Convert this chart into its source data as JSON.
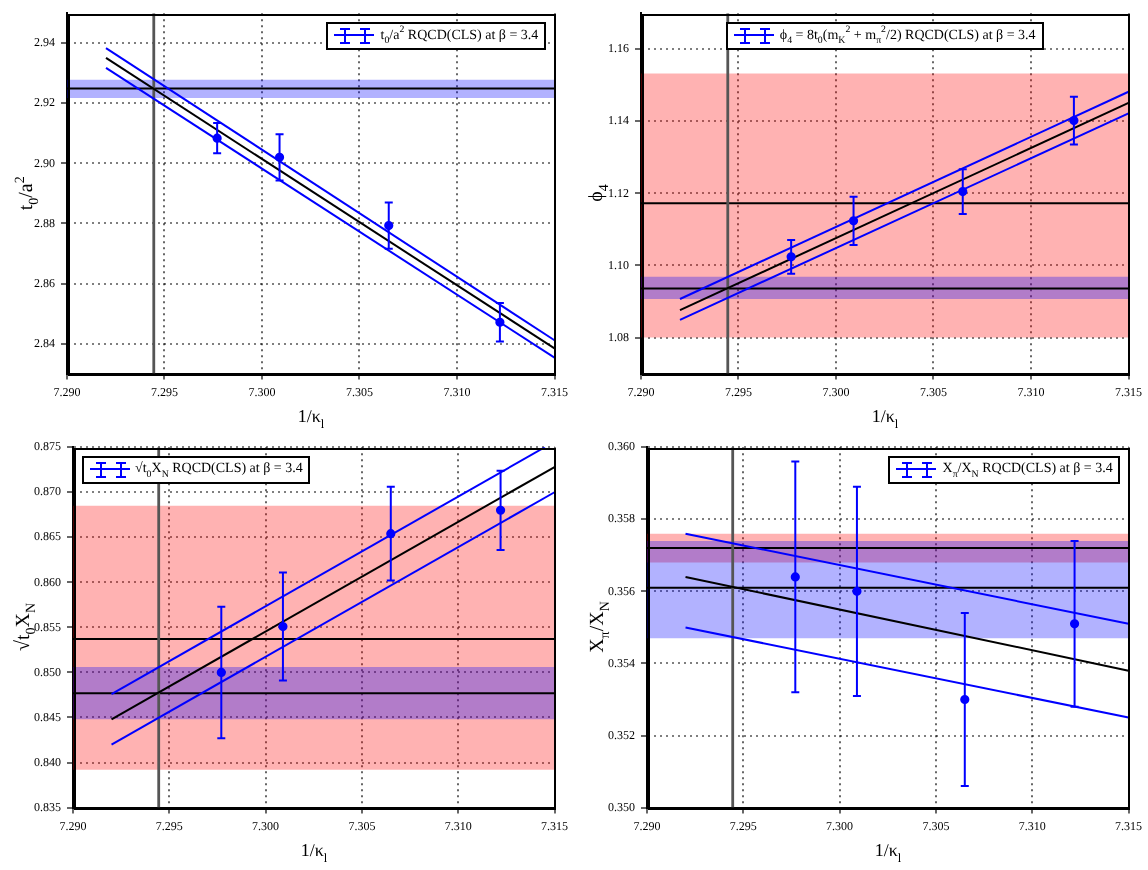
{
  "chart_data": [
    {
      "type": "scatter",
      "xlabel": "1/κ$_{l}$",
      "ylabel": "t$_{0}$/a$^{2}$",
      "grid": true,
      "legend": "top right",
      "xlim": [
        7.29,
        7.315
      ],
      "xticks": [
        {
          "value": 7.29,
          "label": "7.290"
        },
        {
          "value": 7.295,
          "label": "7.295"
        },
        {
          "value": 7.3,
          "label": "7.300"
        },
        {
          "value": 7.305,
          "label": "7.305"
        },
        {
          "value": 7.31,
          "label": "7.310"
        },
        {
          "value": 7.315,
          "label": "7.315"
        }
      ],
      "ylim": [
        2.83,
        2.95
      ],
      "yticks": [
        2.84,
        2.86,
        2.88,
        {
          "value": 2.9,
          "label": "2.90"
        },
        2.92,
        2.94
      ],
      "series": [
        {
          "name": "t$_{0}$/a$^{2}$ RQCD(CLS) at β = 3.4",
          "marker": "circle",
          "color": "#0000ff",
          "x": [
            7.2977,
            7.3009,
            7.3065,
            7.3122
          ],
          "values": [
            2.9084,
            2.902,
            2.8793,
            2.8471
          ],
          "errors": [
            0.005,
            0.0077,
            0.0077,
            0.0064
          ]
        },
        {
          "type": "line",
          "marker": "none",
          "color": "#000000",
          "x": [
            7.292,
            7.315
          ],
          "values": [
            2.9351,
            2.8384
          ]
        },
        {
          "type": "line",
          "marker": "none",
          "color": "#0000ff",
          "x": [
            7.292,
            7.315
          ],
          "values": [
            2.9384,
            2.8411
          ]
        },
        {
          "type": "line",
          "marker": "none",
          "color": "#0000ff",
          "x": [
            7.292,
            7.315
          ],
          "values": [
            2.9318,
            2.8353
          ]
        }
      ],
      "bands": [
        {
          "axis": "y",
          "from": 2.9218,
          "to": 2.9278,
          "color": "#0000ff"
        }
      ],
      "ref_lines": [
        {
          "axis": "y",
          "value": 2.9249,
          "color": "#000000"
        },
        {
          "axis": "x",
          "value": 7.29445,
          "color": "#555555"
        }
      ]
    },
    {
      "type": "scatter",
      "xlabel": "1/κ$_{l}$",
      "ylabel": "ϕ$_{4}$",
      "grid": true,
      "legend": "top",
      "xlim": [
        7.29,
        7.315
      ],
      "xticks": [
        {
          "value": 7.29,
          "label": "7.290"
        },
        {
          "value": 7.295,
          "label": "7.295"
        },
        {
          "value": 7.3,
          "label": "7.300"
        },
        {
          "value": 7.305,
          "label": "7.305"
        },
        {
          "value": 7.31,
          "label": "7.310"
        },
        {
          "value": 7.315,
          "label": "7.315"
        }
      ],
      "ylim": [
        1.07,
        1.17
      ],
      "yticks": [
        1.08,
        {
          "value": 1.1,
          "label": "1.10"
        },
        1.12,
        1.14,
        1.16
      ],
      "series": [
        {
          "name": "ϕ$_{4}$ = 8t$_{0}$(m$_{K}$$^{2}$ + m$_{π}$$^{2}$/2) RQCD(CLS) at β = 3.4",
          "marker": "circle",
          "color": "#0000ff",
          "x": [
            7.2977,
            7.3009,
            7.3065,
            7.3122
          ],
          "values": [
            1.1024,
            1.1124,
            1.1205,
            1.1402
          ],
          "errors": [
            0.0047,
            0.0067,
            0.0062,
            0.0066
          ]
        },
        {
          "type": "line",
          "marker": "none",
          "color": "#000000",
          "x": [
            7.292,
            7.315
          ],
          "values": [
            1.0876,
            1.1451
          ]
        },
        {
          "type": "line",
          "marker": "none",
          "color": "#0000ff",
          "x": [
            7.292,
            7.315
          ],
          "values": [
            1.0907,
            1.1482
          ]
        },
        {
          "type": "line",
          "marker": "none",
          "color": "#0000ff",
          "x": [
            7.292,
            7.315
          ],
          "values": [
            1.0849,
            1.1422
          ]
        }
      ],
      "bands": [
        {
          "axis": "y",
          "from": 1.08,
          "to": 1.1533,
          "color": "#ff0000"
        },
        {
          "axis": "y",
          "from": 1.0907,
          "to": 1.0969,
          "color": "#0000ff"
        }
      ],
      "ref_lines": [
        {
          "axis": "y",
          "value": 1.1173,
          "color": "#000000"
        },
        {
          "axis": "y",
          "value": 1.0936,
          "color": "#000000"
        },
        {
          "axis": "x",
          "value": 7.29445,
          "color": "#555555"
        }
      ]
    },
    {
      "type": "scatter",
      "xlabel": "1/κ$_{l}$",
      "ylabel": "√t$_{0}$X$_{N}$",
      "grid": true,
      "legend": "top left",
      "xlim": [
        7.29,
        7.315
      ],
      "xticks": [
        {
          "value": 7.29,
          "label": "7.290"
        },
        {
          "value": 7.295,
          "label": "7.295"
        },
        {
          "value": 7.3,
          "label": "7.300"
        },
        {
          "value": 7.305,
          "label": "7.305"
        },
        {
          "value": 7.31,
          "label": "7.310"
        },
        {
          "value": 7.315,
          "label": "7.315"
        }
      ],
      "ylim": [
        0.835,
        0.875
      ],
      "yticks": [
        0.835,
        {
          "value": 0.84,
          "label": "0.840"
        },
        0.845,
        {
          "value": 0.85,
          "label": "0.850"
        },
        0.855,
        {
          "value": 0.86,
          "label": "0.860"
        },
        0.865,
        {
          "value": 0.87,
          "label": "0.870"
        },
        0.875
      ],
      "series": [
        {
          "name": "√t$_{0}$X$_{N}$ RQCD(CLS) at β = 3.4",
          "marker": "circle",
          "color": "#0000ff",
          "x": [
            7.2977,
            7.3009,
            7.3065,
            7.3122
          ],
          "values": [
            0.85,
            0.8551,
            0.8654,
            0.868
          ],
          "errors": [
            0.0073,
            0.006,
            0.0052,
            0.0044
          ]
        },
        {
          "type": "line",
          "marker": "none",
          "color": "#000000",
          "x": [
            7.292,
            7.315
          ],
          "values": [
            0.8448,
            0.8728
          ]
        },
        {
          "type": "line",
          "marker": "none",
          "color": "#0000ff",
          "x": [
            7.292,
            7.3145
          ],
          "values": [
            0.8476,
            0.875
          ]
        },
        {
          "type": "line",
          "marker": "none",
          "color": "#0000ff",
          "x": [
            7.292,
            7.315
          ],
          "values": [
            0.842,
            0.87
          ]
        }
      ],
      "bands": [
        {
          "axis": "y",
          "from": 0.8392,
          "to": 0.8685,
          "color": "#ff0000"
        },
        {
          "axis": "y",
          "from": 0.8448,
          "to": 0.8506,
          "color": "#0000ff"
        }
      ],
      "ref_lines": [
        {
          "axis": "y",
          "value": 0.8537,
          "color": "#000000"
        },
        {
          "axis": "y",
          "value": 0.8477,
          "color": "#000000"
        },
        {
          "axis": "x",
          "value": 7.29445,
          "color": "#555555"
        }
      ]
    },
    {
      "type": "scatter",
      "xlabel": "1/κ$_{l}$",
      "ylabel": "X$_{π}$/X$_{N}$",
      "grid": true,
      "legend": "top right",
      "xlim": [
        7.29,
        7.315
      ],
      "xticks": [
        {
          "value": 7.29,
          "label": "7.290"
        },
        {
          "value": 7.295,
          "label": "7.295"
        },
        {
          "value": 7.3,
          "label": "7.300"
        },
        {
          "value": 7.305,
          "label": "7.305"
        },
        {
          "value": 7.31,
          "label": "7.310"
        },
        {
          "value": 7.315,
          "label": "7.315"
        }
      ],
      "ylim": [
        0.35,
        0.36
      ],
      "yticks": [
        {
          "value": 0.35,
          "label": "0.350"
        },
        0.352,
        0.354,
        0.356,
        0.358,
        {
          "value": 0.36,
          "label": "0.360"
        }
      ],
      "series": [
        {
          "name": "X$_{π}$/X$_{N}$ RQCD(CLS) at β = 3.4",
          "marker": "circle",
          "color": "#0000ff",
          "x": [
            7.2977,
            7.3009,
            7.3065,
            7.3122
          ],
          "values": [
            0.3564,
            0.356,
            0.353,
            0.3551
          ],
          "errors": [
            0.0032,
            0.0029,
            0.0024,
            0.0023
          ]
        },
        {
          "type": "line",
          "marker": "none",
          "color": "#000000",
          "x": [
            7.292,
            7.315
          ],
          "values": [
            0.3564,
            0.3538
          ]
        },
        {
          "type": "line",
          "marker": "none",
          "color": "#0000ff",
          "x": [
            7.292,
            7.315
          ],
          "values": [
            0.3576,
            0.3551
          ]
        },
        {
          "type": "line",
          "marker": "none",
          "color": "#0000ff",
          "x": [
            7.292,
            7.315
          ],
          "values": [
            0.355,
            0.3525
          ]
        }
      ],
      "bands": [
        {
          "axis": "y",
          "from": 0.3568,
          "to": 0.3576,
          "color": "#ff0000"
        },
        {
          "axis": "y",
          "from": 0.3547,
          "to": 0.3574,
          "color": "#0000ff"
        }
      ],
      "ref_lines": [
        {
          "axis": "y",
          "value": 0.3572,
          "color": "#000000"
        },
        {
          "axis": "y",
          "value": 0.3561,
          "color": "#000000"
        },
        {
          "axis": "x",
          "value": 7.29445,
          "color": "#555555"
        }
      ]
    }
  ]
}
